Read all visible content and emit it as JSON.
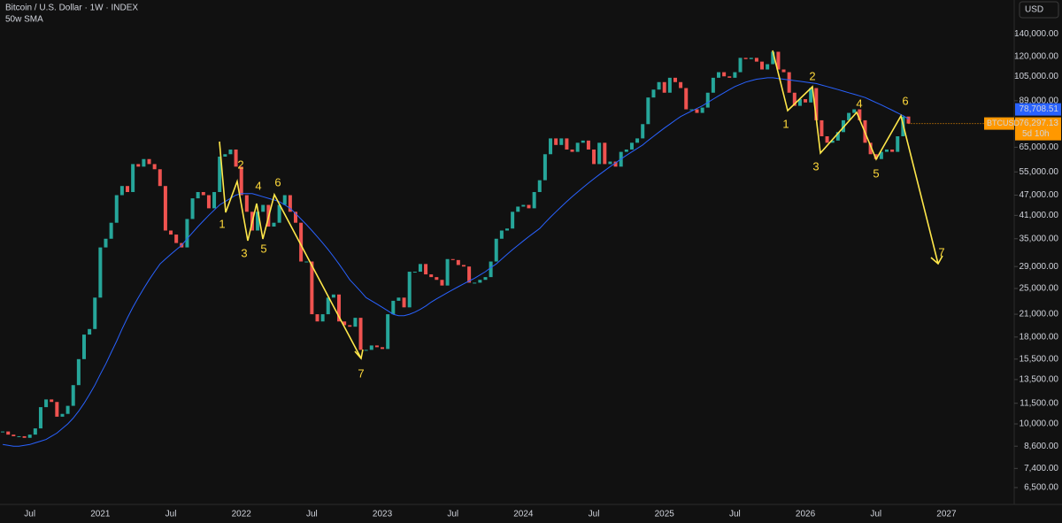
{
  "chart_data": {
    "type": "candlestick",
    "title": "Bitcoin / U.S. Dollar · 1W · INDEX",
    "indicator": "50w SMA",
    "currency": "USD",
    "symbol": "BTCUSD",
    "countdown": "5d 10h",
    "last_price_label": "76,297.13",
    "sma_label": "78,708.51",
    "log_scale": true,
    "ylim": [
      5800,
      176000
    ],
    "yticks": [
      {
        "value": 140000,
        "label": "140,000.00"
      },
      {
        "value": 120000,
        "label": "120,000.00"
      },
      {
        "value": 105000,
        "label": "105,000.00"
      },
      {
        "value": 89000,
        "label": "89,000.00"
      },
      {
        "value": 65000,
        "label": "65,000.00"
      },
      {
        "value": 55000,
        "label": "55,000.00"
      },
      {
        "value": 47000,
        "label": "47,000.00"
      },
      {
        "value": 41000,
        "label": "41,000.00"
      },
      {
        "value": 35000,
        "label": "35,000.00"
      },
      {
        "value": 29000,
        "label": "29,000.00"
      },
      {
        "value": 25000,
        "label": "25,000.00"
      },
      {
        "value": 21000,
        "label": "21,000.00"
      },
      {
        "value": 18000,
        "label": "18,000.00"
      },
      {
        "value": 15500,
        "label": "15,500.00"
      },
      {
        "value": 13500,
        "label": "13,500.00"
      },
      {
        "value": 11500,
        "label": "11,500.00"
      },
      {
        "value": 10000,
        "label": "10,000.00"
      },
      {
        "value": 8600,
        "label": "8,600.00"
      },
      {
        "value": 7400,
        "label": "7,400.00"
      },
      {
        "value": 6500,
        "label": "6,500.00"
      }
    ],
    "categories": [
      null,
      null,
      null,
      null,
      null,
      "Jul",
      null,
      null,
      null,
      null,
      null,
      null,
      null,
      null,
      null,
      null,
      null,
      null,
      "2021",
      null,
      null,
      null,
      null,
      null,
      null,
      null,
      null,
      null,
      null,
      null,
      null,
      "Jul",
      null,
      null,
      null,
      null,
      null,
      null,
      null,
      null,
      null,
      null,
      null,
      null,
      "2022",
      null,
      null,
      null,
      null,
      null,
      null,
      null,
      null,
      null,
      null,
      null,
      null,
      "Jul",
      null,
      null,
      null,
      null,
      null,
      null,
      null,
      null,
      null,
      null,
      null,
      null,
      "2023",
      null,
      null,
      null,
      null,
      null,
      null,
      null,
      null,
      null,
      null,
      null,
      null,
      "Jul",
      null,
      null,
      null,
      null,
      null,
      null,
      null,
      null,
      null,
      null,
      null,
      null,
      "2024",
      null,
      null,
      null,
      null,
      null,
      null,
      null,
      null,
      null,
      null,
      null,
      null,
      "Jul",
      null,
      null,
      null,
      null,
      null,
      null,
      null,
      null,
      null,
      null,
      null,
      null,
      "2025",
      null,
      null,
      null,
      null,
      null,
      null,
      null,
      null,
      null,
      null,
      null,
      null,
      "Jul",
      null,
      null,
      null,
      null,
      null,
      null,
      null,
      null,
      null,
      null,
      null,
      null,
      "2026",
      null,
      null,
      null,
      null,
      null,
      null,
      null,
      null,
      null,
      null,
      null,
      null,
      "Jul",
      null,
      null,
      null,
      null,
      null,
      null,
      null,
      null,
      null,
      null,
      null,
      null,
      "2027",
      null,
      null,
      null,
      null,
      null,
      null,
      null,
      null,
      null,
      null,
      null,
      null
    ],
    "series": [
      {
        "name": "BTCUSD",
        "color_up": "#26a69a",
        "color_down": "#ef5350",
        "values": [
          9500,
          9300,
          9200,
          9200,
          9100,
          9300,
          9700,
          11200,
          11800,
          11600,
          10500,
          10700,
          11300,
          13000,
          15500,
          18300,
          19000,
          23500,
          33000,
          35000,
          39000,
          47000,
          50000,
          48000,
          58000,
          57000,
          60000,
          58000,
          56000,
          50000,
          37000,
          36000,
          34000,
          33000,
          40000,
          46000,
          48000,
          47000,
          43000,
          48000,
          61000,
          62000,
          64000,
          57000,
          47000,
          42000,
          37000,
          42000,
          44000,
          38000,
          39000,
          44000,
          47000,
          42000,
          39000,
          30000,
          30000,
          21000,
          20000,
          21000,
          23500,
          24000,
          20000,
          19500,
          19300,
          20500,
          16500,
          16500,
          17000,
          16800,
          16600,
          21000,
          23000,
          23500,
          22000,
          28000,
          28000,
          29500,
          27500,
          27000,
          26500,
          25500,
          30500,
          30300,
          29300,
          29000,
          26000,
          26000,
          26500,
          27000,
          30000,
          35000,
          37000,
          37500,
          42000,
          43500,
          44000,
          43000,
          48000,
          52000,
          62000,
          69000,
          66000,
          69000,
          64000,
          63000,
          67000,
          68000,
          64000,
          58000,
          67000,
          58000,
          59000,
          57000,
          63000,
          64000,
          67000,
          69000,
          76000,
          91000,
          96000,
          101000,
          94000,
          104000,
          101000,
          97000,
          84000,
          84000,
          82000,
          85000,
          94000,
          104000,
          108000,
          105000,
          104000,
          108000,
          119000,
          118000,
          119000,
          116000,
          110000,
          114000,
          124000,
          110000,
          108000,
          94000,
          86000,
          90000,
          88000,
          97000,
          78000,
          70000,
          67000,
          68000,
          72000,
          78000,
          82000,
          84000,
          78000,
          67000,
          62000,
          60000,
          63000,
          64000,
          63000,
          70000,
          80000,
          76297.13,
          null,
          null,
          null,
          null,
          null,
          null,
          null,
          null,
          null,
          null,
          null,
          null,
          null,
          null,
          null,
          null,
          null,
          null,
          null
        ]
      },
      {
        "name": "50w SMA",
        "color": "#2962ff",
        "values": [
          8700,
          8650,
          8600,
          8600,
          8650,
          8700,
          8800,
          8900,
          9000,
          9200,
          9400,
          9700,
          10000,
          10400,
          10900,
          11500,
          12200,
          13000,
          14000,
          15000,
          16200,
          17500,
          19000,
          20500,
          22000,
          23500,
          25000,
          26500,
          28000,
          29500,
          30500,
          31500,
          32500,
          33500,
          35000,
          36500,
          38000,
          39500,
          41000,
          42500,
          44000,
          45000,
          46000,
          47000,
          47500,
          47500,
          47500,
          47000,
          46500,
          46000,
          45500,
          45000,
          44000,
          43000,
          41500,
          40000,
          38500,
          37000,
          35500,
          34000,
          32500,
          31000,
          29500,
          28000,
          26500,
          25500,
          24500,
          23500,
          23000,
          22500,
          22000,
          21500,
          21000,
          20800,
          20800,
          21000,
          21300,
          21700,
          22200,
          22800,
          23300,
          23800,
          24300,
          24800,
          25300,
          25800,
          26300,
          26800,
          27400,
          28000,
          28800,
          29500,
          30500,
          31500,
          32500,
          33500,
          34500,
          35500,
          36500,
          37500,
          39000,
          40500,
          42000,
          43500,
          45000,
          46500,
          48000,
          49500,
          51000,
          52500,
          54000,
          55500,
          57000,
          58500,
          60000,
          61500,
          63000,
          64500,
          66000,
          68000,
          70000,
          72000,
          74000,
          76000,
          78000,
          80000,
          81500,
          83000,
          84500,
          86000,
          88000,
          90000,
          92000,
          94000,
          96000,
          98000,
          99500,
          101000,
          102000,
          103000,
          103500,
          104000,
          104000,
          103500,
          103000,
          102500,
          102000,
          101500,
          101000,
          100500,
          100000,
          99000,
          98000,
          97000,
          96000,
          95000,
          94000,
          93000,
          92000,
          91000,
          89500,
          88000,
          86500,
          85000,
          83500,
          82000,
          80500,
          78708.51,
          null,
          null,
          null,
          null,
          null,
          null,
          null,
          null,
          null,
          null,
          null,
          null,
          null,
          null,
          null,
          null,
          null,
          null,
          null
        ]
      }
    ],
    "wave_labels_2022": [
      "1",
      "2",
      "3",
      "4",
      "5",
      "6",
      "7"
    ],
    "wave_labels_2026": [
      "1",
      "2",
      "3",
      "4",
      "5",
      "6",
      "7"
    ]
  }
}
